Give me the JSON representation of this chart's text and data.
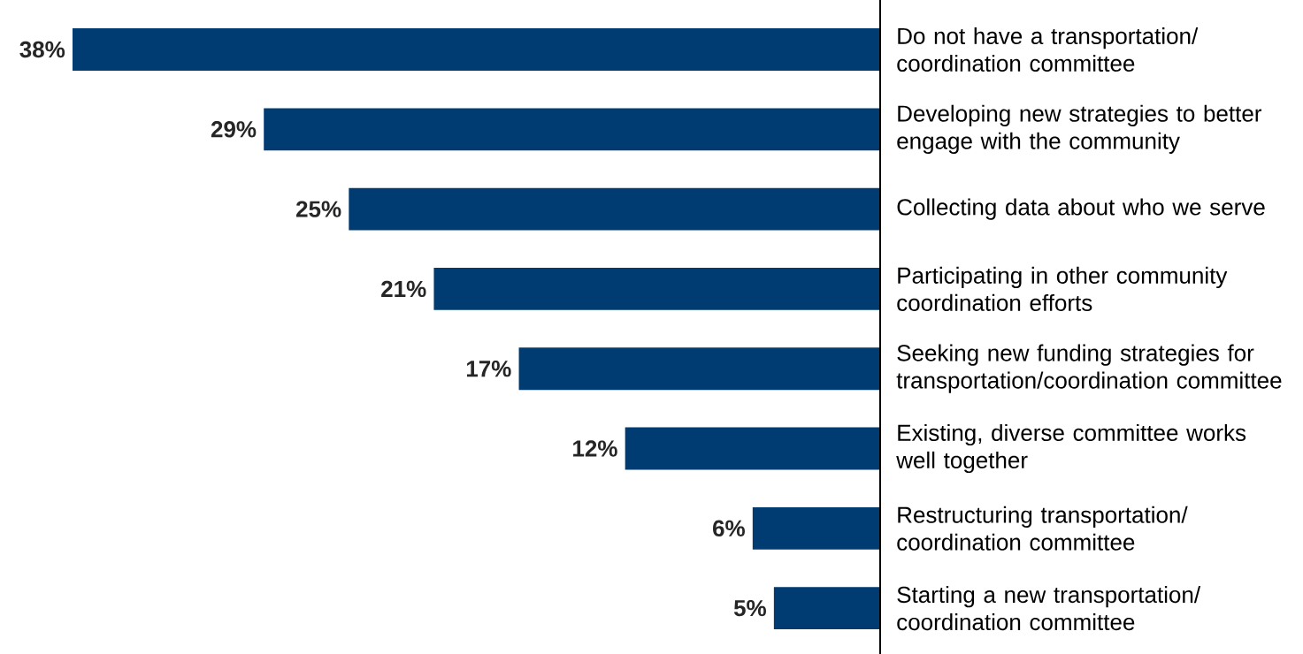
{
  "chart_data": {
    "type": "bar",
    "orientation": "horizontal",
    "categories": [
      "Do not have a transportation/ coordination committee",
      "Developing new strategies to better engage with the community",
      "Collecting data about who we serve",
      "Participating in other community coordination efforts",
      "Seeking new funding strategies for transportation/coordination committee",
      "Existing, diverse committee works well together",
      "Restructuring transportation/ coordination committee",
      "Starting a new transportation/ coordination committee"
    ],
    "values": [
      38,
      29,
      25,
      21,
      17,
      12,
      6,
      5
    ],
    "value_labels": [
      "38%",
      "29%",
      "25%",
      "21%",
      "17%",
      "12%",
      "6%",
      "5%"
    ],
    "color": "#003b71"
  }
}
